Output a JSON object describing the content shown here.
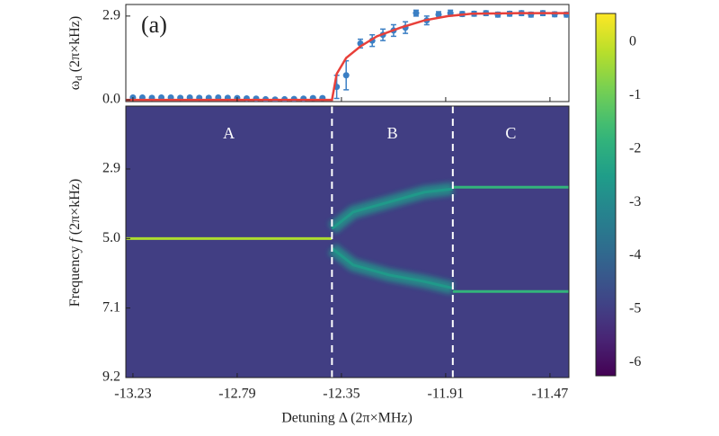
{
  "chart_data": [
    {
      "type": "scatter",
      "panel_label": "(a)",
      "y_label_symbol": "ω",
      "y_label_subscript": "d",
      "y_label_unit": "(2π×kHz)",
      "xlim": [
        -13.26,
        -11.39
      ],
      "xticks": [
        -13.23,
        -12.79,
        -12.35,
        -11.91,
        -11.47
      ],
      "ylim": [
        -0.06,
        3.3
      ],
      "yticks": [
        {
          "value": 0,
          "label": "0.0"
        },
        2.9
      ],
      "series": [
        {
          "name": "measured",
          "color": "#3b7fc4",
          "x": [
            -13.23,
            -13.19,
            -13.15,
            -13.11,
            -13.07,
            -13.03,
            -12.99,
            -12.95,
            -12.91,
            -12.87,
            -12.83,
            -12.79,
            -12.75,
            -12.71,
            -12.67,
            -12.63,
            -12.59,
            -12.55,
            -12.51,
            -12.47,
            -12.43,
            -12.37,
            -12.33,
            -12.27,
            -12.22,
            -12.175,
            -12.13,
            -12.08,
            -12.035,
            -11.99,
            -11.94,
            -11.89,
            -11.84,
            -11.79,
            -11.74,
            -11.69,
            -11.64,
            -11.59,
            -11.55,
            -11.5,
            -11.45,
            -11.4
          ],
          "values": [
            0.08,
            0.08,
            0.07,
            0.08,
            0.08,
            0.07,
            0.08,
            0.07,
            0.07,
            0.08,
            0.07,
            0.06,
            0.05,
            0.04,
            0.02,
            0.01,
            0.02,
            0.03,
            0.04,
            0.06,
            0.06,
            0.45,
            0.85,
            1.95,
            2.05,
            2.25,
            2.4,
            2.5,
            3.0,
            2.75,
            2.95,
            3.0,
            2.97,
            2.98,
            3.0,
            2.95,
            2.98,
            3.0,
            2.95,
            3.0,
            2.96,
            2.95
          ],
          "errors": [
            0.04,
            0.04,
            0.04,
            0.04,
            0.04,
            0.04,
            0.04,
            0.04,
            0.04,
            0.04,
            0.04,
            0.04,
            0.04,
            0.04,
            0.04,
            0.04,
            0.04,
            0.04,
            0.04,
            0.04,
            0.04,
            0.4,
            0.5,
            0.15,
            0.2,
            0.2,
            0.2,
            0.2,
            0.1,
            0.15,
            0.1,
            0.1,
            0.08,
            0.08,
            0.08,
            0.08,
            0.08,
            0.08,
            0.08,
            0.08,
            0.08,
            0.08
          ]
        },
        {
          "name": "fit",
          "color": "#e8403a",
          "x": [
            -13.26,
            -12.39,
            -12.37,
            -12.33,
            -12.27,
            -12.2,
            -12.1,
            -12.0,
            -11.9,
            -11.8,
            -11.6,
            -11.39
          ],
          "values": [
            0,
            0,
            0.9,
            1.45,
            1.85,
            2.2,
            2.5,
            2.75,
            2.9,
            2.98,
            3.0,
            3.0
          ]
        }
      ]
    },
    {
      "type": "heatmap",
      "x_label": "Detuning Δ (2π×MHz)",
      "y_label_word": "Frequency",
      "y_label_symbol": "f",
      "y_label_unit": "(2π×kHz)",
      "xlim": [
        -13.26,
        -11.39
      ],
      "xticks": [
        -13.23,
        -12.79,
        -12.35,
        -11.91,
        -11.47
      ],
      "ylim": [
        1.0,
        9.2
      ],
      "yticks": [
        2.9,
        {
          "value": 5,
          "label": "5.0"
        },
        7.1,
        9.2
      ],
      "dividers": [
        -12.39,
        -11.88
      ],
      "regions": [
        "A",
        "B",
        "C"
      ],
      "background": -5,
      "ridges": [
        {
          "x": [
            -13.26,
            -12.39
          ],
          "f": [
            5.0,
            5.0
          ],
          "z": -0.3
        },
        {
          "x": [
            -12.39,
            -12.3,
            -12.15,
            -12.0,
            -11.88
          ],
          "f": [
            4.7,
            4.2,
            3.9,
            3.6,
            3.5
          ],
          "z": -2.6
        },
        {
          "x": [
            -12.39,
            -12.3,
            -12.15,
            -12.0,
            -11.88
          ],
          "f": [
            5.3,
            5.8,
            6.1,
            6.3,
            6.5
          ],
          "z": -2.6
        },
        {
          "x": [
            -11.88,
            -11.39
          ],
          "f": [
            3.45,
            3.45
          ],
          "z": -1.8
        },
        {
          "x": [
            -11.88,
            -11.39
          ],
          "f": [
            6.6,
            6.6
          ],
          "z": -1.8
        }
      ],
      "clim": [
        -6.25,
        0.54
      ],
      "cticks": [
        0,
        -1,
        -2,
        -3,
        -4,
        -5,
        -6
      ]
    }
  ]
}
